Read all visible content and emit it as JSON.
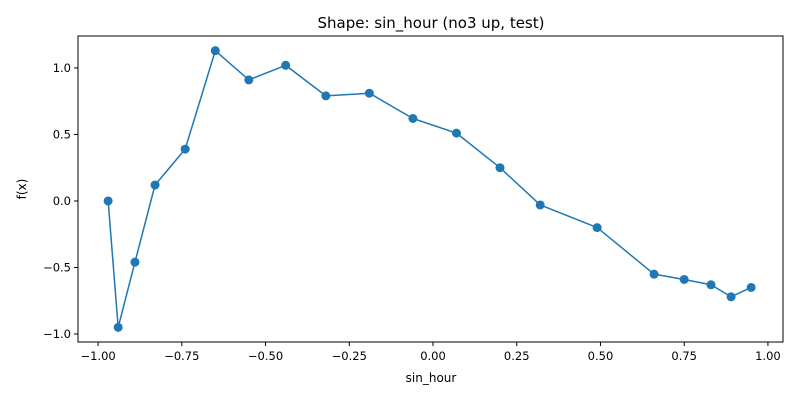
{
  "chart_data": {
    "type": "line",
    "title": "Shape: sin_hour (no3 up, test)",
    "xlabel": "sin_hour",
    "ylabel": "f(x)",
    "xlim": [
      -1.06,
      1.045
    ],
    "ylim": [
      -1.06,
      1.24
    ],
    "xticks": [
      -1.0,
      -0.75,
      -0.5,
      -0.25,
      0.0,
      0.25,
      0.5,
      0.75,
      1.0
    ],
    "xtick_labels": [
      "−1.00",
      "−0.75",
      "−0.50",
      "−0.25",
      "0.00",
      "0.25",
      "0.50",
      "0.75",
      "1.00"
    ],
    "yticks": [
      -1.0,
      -0.5,
      0.0,
      0.5,
      1.0
    ],
    "ytick_labels": [
      "−1.0",
      "−0.5",
      "0.0",
      "0.5",
      "1.0"
    ],
    "grid": false,
    "color": "#1f77b4",
    "series": [
      {
        "x": [
          -0.97,
          -0.94,
          -0.89,
          -0.83,
          -0.74,
          -0.65,
          -0.55,
          -0.44,
          -0.32,
          -0.19,
          -0.06,
          0.07,
          0.2,
          0.32,
          0.49,
          0.66,
          0.75,
          0.83,
          0.89,
          0.95
        ],
        "y": [
          0.0,
          -0.95,
          -0.46,
          0.12,
          0.39,
          1.13,
          0.91,
          1.02,
          0.79,
          0.81,
          0.62,
          0.51,
          0.25,
          -0.03,
          -0.2,
          -0.55,
          -0.59,
          -0.63,
          -0.72,
          -0.65
        ]
      }
    ]
  }
}
